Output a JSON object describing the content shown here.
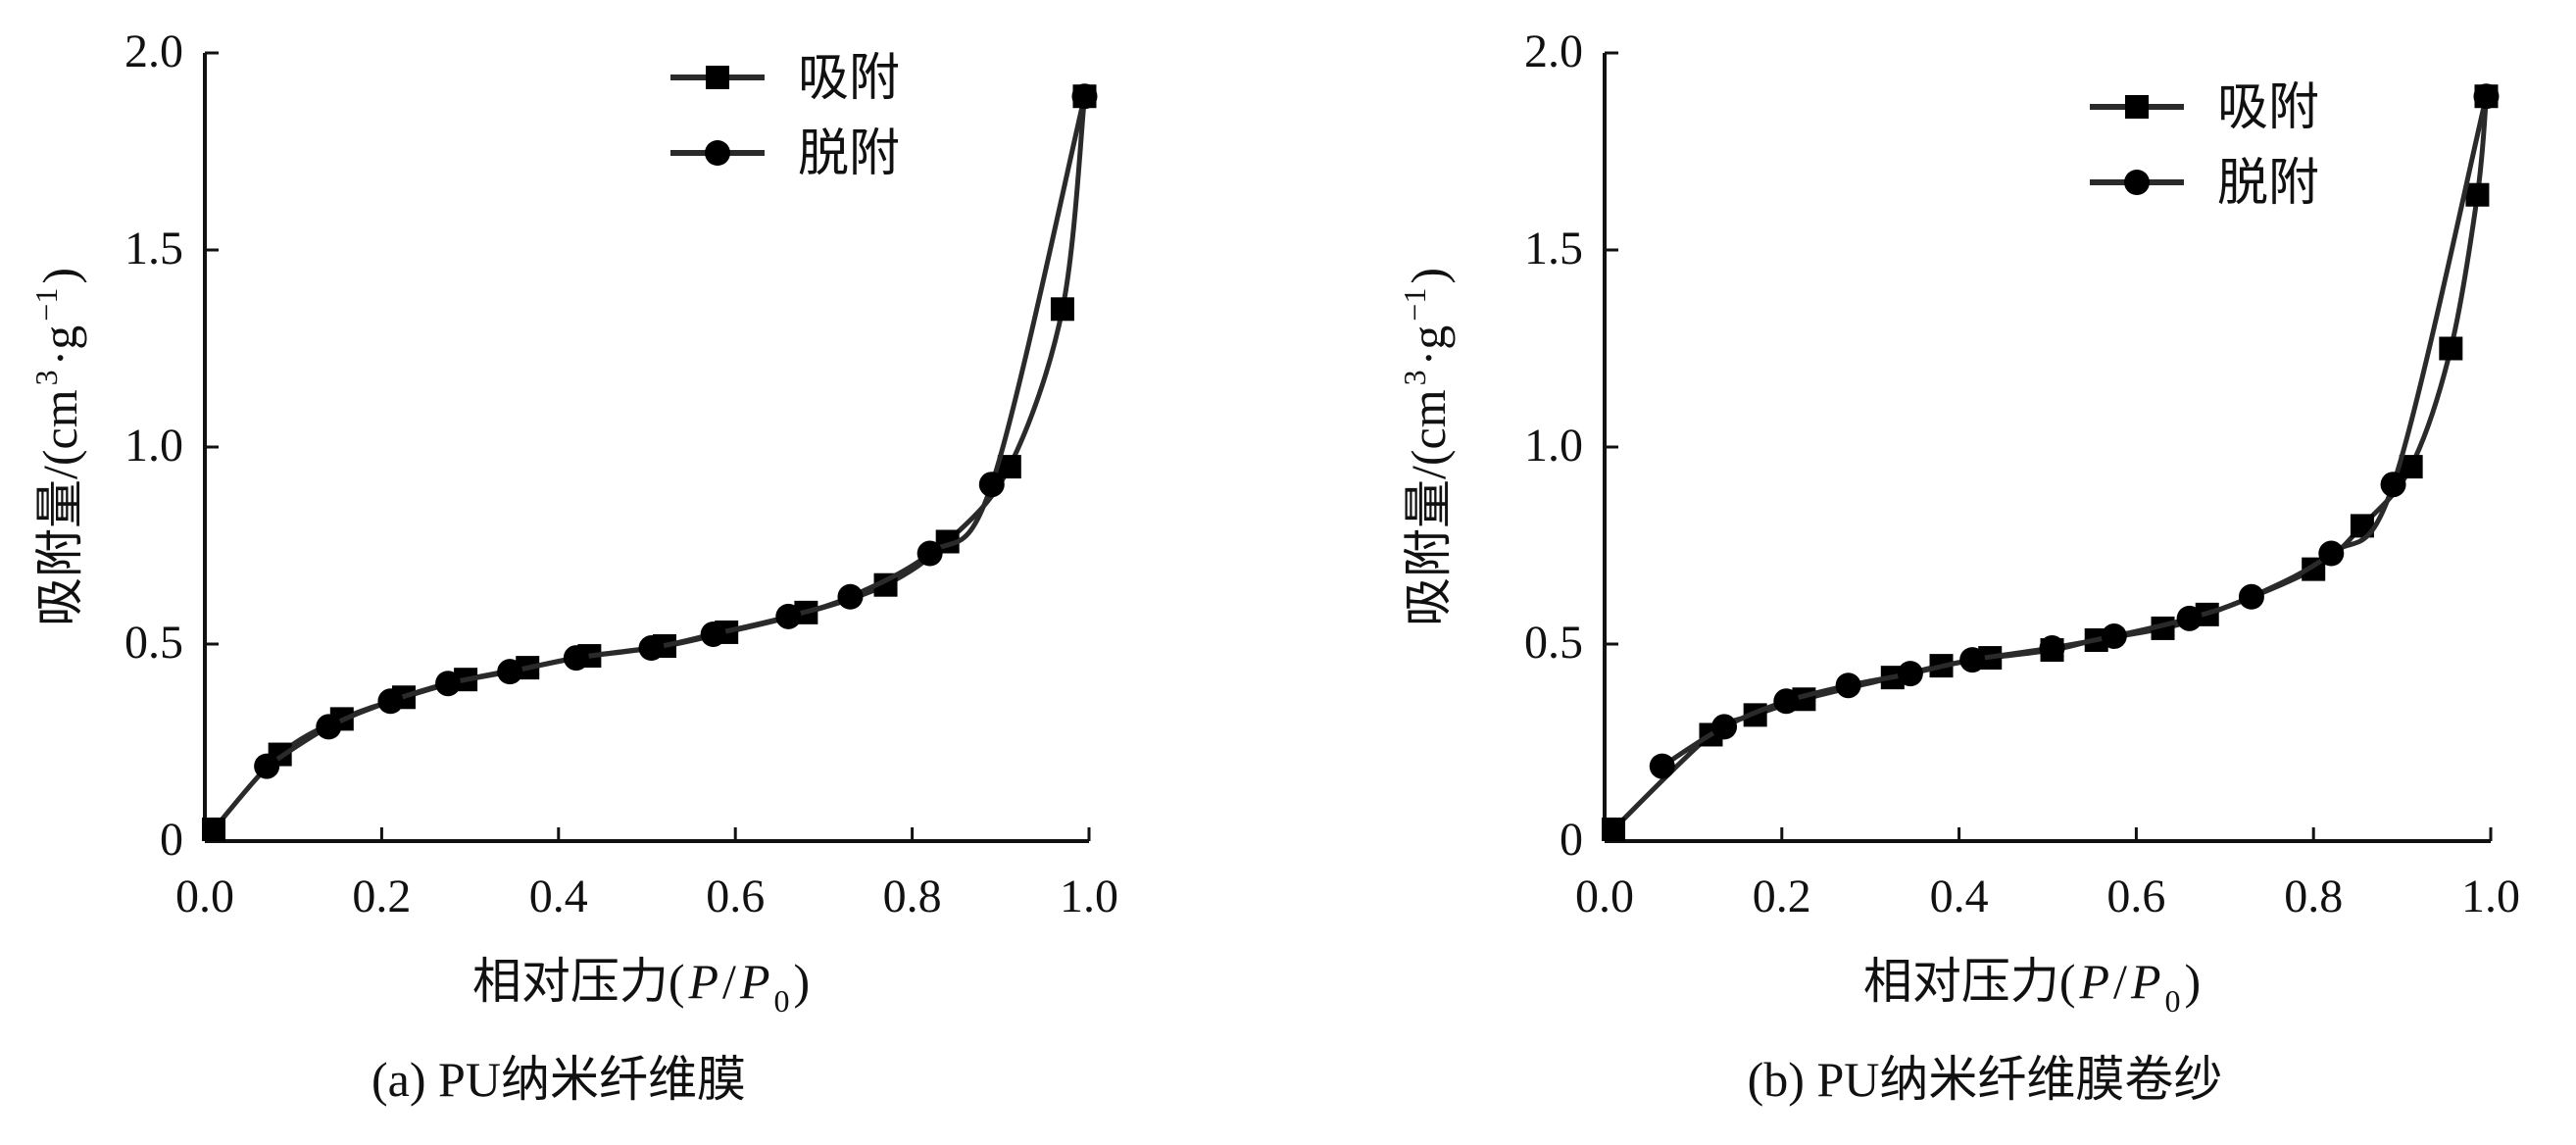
{
  "chart_data": [
    {
      "type": "line",
      "caption": "(a)  PU纳米纤维膜",
      "xlabel_main": "相对压力(",
      "xlabel_p": "P",
      "xlabel_slash": "/",
      "xlabel_p0": "P",
      "xlabel_sub": "0",
      "xlabel_close": ")",
      "ylabel_main": "吸附量/(cm",
      "ylabel_sup3": "3",
      "ylabel_mid": "·g",
      "ylabel_supm1": "−1",
      "ylabel_close": ")",
      "xlim": [
        0,
        1.0
      ],
      "ylim": [
        0,
        2.0
      ],
      "xticks": [
        "0.0",
        "0.2",
        "0.4",
        "0.6",
        "0.8",
        "1.0"
      ],
      "yticks": [
        "0",
        "0.5",
        "1.0",
        "1.5",
        "2.0"
      ],
      "legend_position": "top-center",
      "series": [
        {
          "name": "吸附",
          "marker": "square",
          "x": [
            0.01,
            0.085,
            0.155,
            0.225,
            0.295,
            0.365,
            0.435,
            0.52,
            0.59,
            0.68,
            0.77,
            0.84,
            0.91,
            0.97,
            0.995
          ],
          "y": [
            0.03,
            0.22,
            0.31,
            0.365,
            0.41,
            0.44,
            0.47,
            0.495,
            0.53,
            0.58,
            0.65,
            0.76,
            0.95,
            1.35,
            1.89
          ]
        },
        {
          "name": "脱附",
          "marker": "circle",
          "x": [
            0.995,
            0.89,
            0.82,
            0.73,
            0.66,
            0.575,
            0.505,
            0.42,
            0.345,
            0.275,
            0.21,
            0.14,
            0.07
          ],
          "y": [
            1.89,
            0.905,
            0.73,
            0.62,
            0.57,
            0.525,
            0.49,
            0.465,
            0.43,
            0.4,
            0.355,
            0.29,
            0.19
          ]
        }
      ]
    },
    {
      "type": "line",
      "caption": "(b)  PU纳米纤维膜卷纱",
      "xlabel_main": "相对压力(",
      "xlabel_p": "P",
      "xlabel_slash": "/",
      "xlabel_p0": "P",
      "xlabel_sub": "0",
      "xlabel_close": ")",
      "ylabel_main": "吸附量/(cm",
      "ylabel_sup3": "3",
      "ylabel_mid": "·g",
      "ylabel_supm1": "−1",
      "ylabel_close": ")",
      "xlim": [
        0,
        1.0
      ],
      "ylim": [
        0,
        2.0
      ],
      "xticks": [
        "0.0",
        "0.2",
        "0.4",
        "0.6",
        "0.8",
        "1.0"
      ],
      "yticks": [
        "0",
        "0.5",
        "1.0",
        "1.5",
        "2.0"
      ],
      "legend_position": "top-right",
      "series": [
        {
          "name": "吸附",
          "marker": "square",
          "x": [
            0.01,
            0.12,
            0.17,
            0.225,
            0.325,
            0.38,
            0.435,
            0.505,
            0.555,
            0.63,
            0.68,
            0.8,
            0.855,
            0.91,
            0.955,
            0.985,
            0.995
          ],
          "y": [
            0.03,
            0.27,
            0.32,
            0.36,
            0.415,
            0.445,
            0.465,
            0.485,
            0.51,
            0.54,
            0.575,
            0.69,
            0.8,
            0.95,
            1.25,
            1.64,
            1.89
          ]
        },
        {
          "name": "脱附",
          "marker": "circle",
          "x": [
            0.995,
            0.89,
            0.82,
            0.73,
            0.66,
            0.575,
            0.505,
            0.415,
            0.345,
            0.275,
            0.205,
            0.135,
            0.065
          ],
          "y": [
            1.89,
            0.905,
            0.73,
            0.62,
            0.565,
            0.52,
            0.49,
            0.46,
            0.425,
            0.395,
            0.355,
            0.29,
            0.19
          ]
        }
      ]
    }
  ],
  "colors": {
    "line": "#2a2a2a",
    "marker": "#000000",
    "axis": "#111111"
  }
}
